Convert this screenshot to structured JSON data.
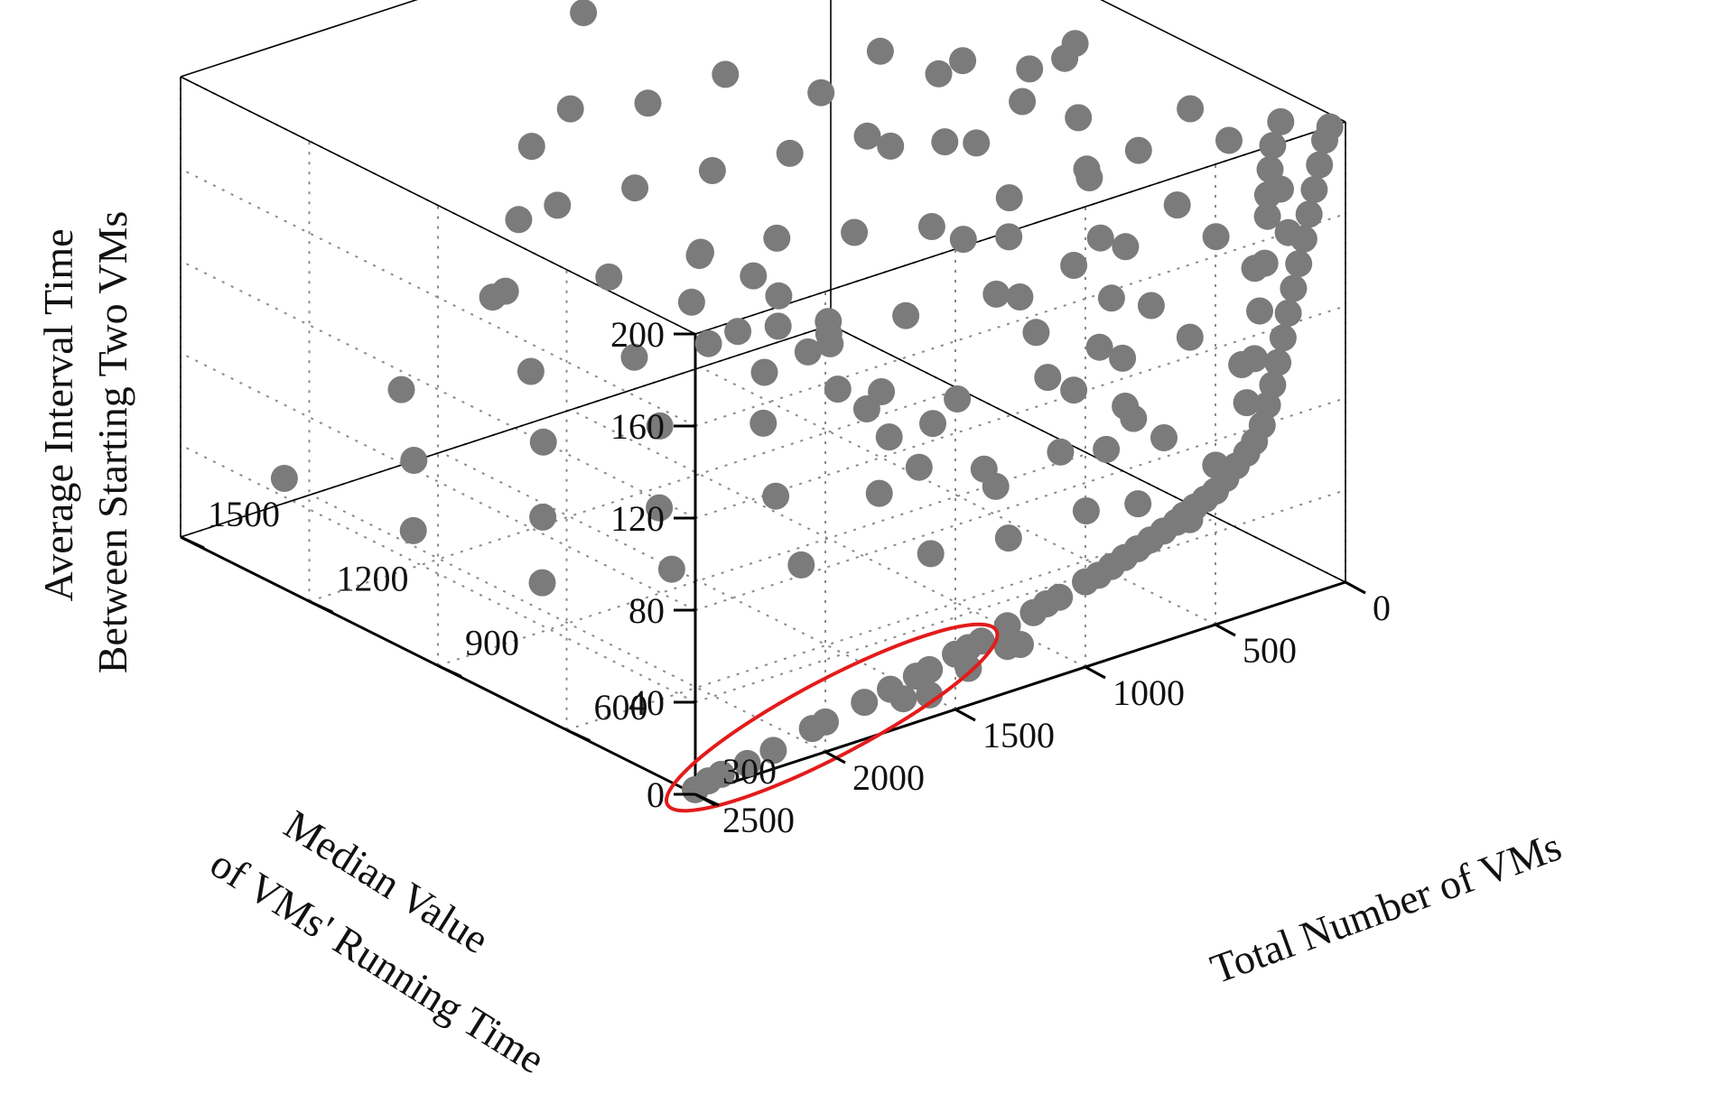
{
  "chart_data": {
    "type": "scatter",
    "title": "",
    "xlabel": "Total Number of VMs",
    "ylabel_lines": [
      "Median Value",
      "of VMs' Running Time"
    ],
    "zlabel_lines": [
      "Average Interval Time",
      "Between Starting Two VMs"
    ],
    "xlim": [
      0,
      2500
    ],
    "ylim": [
      300,
      1500
    ],
    "zlim": [
      0,
      200
    ],
    "x_ticks": [
      "0",
      "500",
      "1000",
      "1500",
      "2000",
      "2500"
    ],
    "y_ticks": [
      "300",
      "600",
      "900",
      "1200",
      "1500"
    ],
    "z_ticks": [
      "0",
      "40",
      "80",
      "120",
      "160",
      "200"
    ],
    "grid": true,
    "marker_color": "#7b7b7b",
    "highlight_color": "#e31b1b",
    "series": [
      {
        "points": [
          [
            2500,
            300,
            2
          ],
          [
            2450,
            300,
            4
          ],
          [
            2400,
            300,
            5
          ],
          [
            2300,
            300,
            6
          ],
          [
            2200,
            300,
            8
          ],
          [
            2050,
            300,
            12
          ],
          [
            2000,
            300,
            13
          ],
          [
            1850,
            300,
            16
          ],
          [
            1750,
            300,
            18
          ],
          [
            1650,
            300,
            20
          ],
          [
            1600,
            300,
            21
          ],
          [
            1500,
            300,
            24
          ],
          [
            1450,
            300,
            25
          ],
          [
            1400,
            300,
            26
          ],
          [
            1300,
            300,
            29
          ],
          [
            1200,
            300,
            31
          ],
          [
            1150,
            300,
            33
          ],
          [
            1100,
            300,
            34
          ],
          [
            1000,
            300,
            37
          ],
          [
            950,
            300,
            38
          ],
          [
            900,
            300,
            40
          ],
          [
            850,
            300,
            42
          ],
          [
            800,
            300,
            44
          ],
          [
            750,
            300,
            46
          ],
          [
            700,
            300,
            48
          ],
          [
            650,
            300,
            50
          ],
          [
            620,
            300,
            52
          ],
          [
            580,
            300,
            54
          ],
          [
            540,
            300,
            56
          ],
          [
            500,
            300,
            58
          ],
          [
            460,
            300,
            62
          ],
          [
            420,
            300,
            66
          ],
          [
            380,
            300,
            70
          ],
          [
            350,
            300,
            74
          ],
          [
            320,
            300,
            80
          ],
          [
            300,
            300,
            88
          ],
          [
            280,
            300,
            96
          ],
          [
            260,
            300,
            105
          ],
          [
            240,
            300,
            115
          ],
          [
            220,
            300,
            125
          ],
          [
            200,
            300,
            135
          ],
          [
            180,
            300,
            145
          ],
          [
            160,
            300,
            155
          ],
          [
            140,
            300,
            165
          ],
          [
            120,
            300,
            175
          ],
          [
            100,
            300,
            185
          ],
          [
            80,
            300,
            195
          ],
          [
            60,
            300,
            200
          ],
          [
            1600,
            300,
            10
          ],
          [
            1450,
            300,
            16
          ],
          [
            1700,
            300,
            12
          ],
          [
            1300,
            300,
            20
          ],
          [
            1250,
            300,
            19
          ],
          [
            380,
            300,
            92
          ],
          [
            350,
            300,
            110
          ],
          [
            330,
            300,
            130
          ],
          [
            310,
            300,
            150
          ],
          [
            300,
            300,
            170
          ],
          [
            290,
            300,
            190
          ],
          [
            280,
            300,
            200
          ],
          [
            250,
            300,
            180
          ],
          [
            220,
            300,
            160
          ],
          [
            500,
            360,
            40
          ],
          [
            400,
            360,
            60
          ],
          [
            300,
            360,
            100
          ],
          [
            250,
            360,
            140
          ],
          [
            200,
            360,
            170
          ],
          [
            150,
            360,
            200
          ],
          [
            600,
            420,
            45
          ],
          [
            500,
            420,
            70
          ],
          [
            400,
            420,
            110
          ],
          [
            300,
            420,
            150
          ],
          [
            250,
            420,
            190
          ],
          [
            700,
            480,
            40
          ],
          [
            550,
            480,
            80
          ],
          [
            450,
            480,
            120
          ],
          [
            350,
            480,
            160
          ],
          [
            300,
            480,
            200
          ],
          [
            900,
            540,
            30
          ],
          [
            700,
            540,
            60
          ],
          [
            550,
            540,
            100
          ],
          [
            450,
            540,
            140
          ],
          [
            400,
            540,
            180
          ],
          [
            1100,
            600,
            25
          ],
          [
            850,
            600,
            45
          ],
          [
            650,
            600,
            85
          ],
          [
            550,
            600,
            130
          ],
          [
            500,
            600,
            170
          ],
          [
            1400,
            720,
            20
          ],
          [
            1100,
            720,
            40
          ],
          [
            800,
            720,
            70
          ],
          [
            650,
            720,
            110
          ],
          [
            600,
            720,
            150
          ],
          [
            550,
            720,
            190
          ],
          [
            1700,
            840,
            18
          ],
          [
            1300,
            840,
            35
          ],
          [
            950,
            840,
            60
          ],
          [
            800,
            840,
            95
          ],
          [
            700,
            840,
            130
          ],
          [
            650,
            840,
            165
          ],
          [
            2000,
            960,
            12
          ],
          [
            1550,
            960,
            28
          ],
          [
            1150,
            960,
            50
          ],
          [
            900,
            960,
            85
          ],
          [
            800,
            960,
            120
          ],
          [
            750,
            960,
            160
          ],
          [
            700,
            960,
            195
          ],
          [
            1800,
            1080,
            22
          ],
          [
            1350,
            1080,
            45
          ],
          [
            1050,
            1080,
            75
          ],
          [
            900,
            1080,
            110
          ],
          [
            850,
            1080,
            145
          ],
          [
            2100,
            1200,
            16
          ],
          [
            1600,
            1200,
            36
          ],
          [
            1250,
            1200,
            60
          ],
          [
            1000,
            1200,
            95
          ],
          [
            950,
            1200,
            130
          ],
          [
            900,
            1200,
            170
          ],
          [
            1900,
            1320,
            28
          ],
          [
            1450,
            1320,
            50
          ],
          [
            1150,
            1320,
            80
          ],
          [
            1050,
            1320,
            115
          ],
          [
            1000,
            1320,
            150
          ],
          [
            2200,
            1440,
            20
          ],
          [
            1750,
            1440,
            42
          ],
          [
            1350,
            1440,
            70
          ],
          [
            1150,
            1440,
            100
          ],
          [
            1100,
            1440,
            140
          ],
          [
            1050,
            1440,
            180
          ],
          [
            1300,
            1500,
            60
          ],
          [
            1200,
            1500,
            90
          ],
          [
            1150,
            1500,
            120
          ],
          [
            300,
            1200,
            10
          ],
          [
            250,
            1350,
            15
          ],
          [
            200,
            1500,
            20
          ],
          [
            350,
            1050,
            12
          ],
          [
            400,
            900,
            8
          ],
          [
            200,
            900,
            60
          ],
          [
            150,
            1100,
            80
          ],
          [
            100,
            1300,
            100
          ],
          [
            120,
            1450,
            110
          ],
          [
            80,
            1200,
            140
          ],
          [
            60,
            1000,
            160
          ],
          [
            450,
            1350,
            30
          ],
          [
            380,
            1450,
            40
          ],
          [
            500,
            1500,
            50
          ],
          [
            420,
            1250,
            35
          ],
          [
            260,
            700,
            30
          ],
          [
            220,
            800,
            45
          ],
          [
            180,
            950,
            70
          ],
          [
            140,
            1000,
            90
          ],
          [
            100,
            1100,
            120
          ],
          [
            70,
            1150,
            150
          ],
          [
            50,
            900,
            180
          ],
          [
            600,
            1000,
            20
          ],
          [
            550,
            1150,
            25
          ],
          [
            500,
            1250,
            30
          ],
          [
            650,
            900,
            18
          ],
          [
            800,
            1300,
            40
          ],
          [
            700,
            1400,
            45
          ],
          [
            750,
            1200,
            35
          ],
          [
            320,
            600,
            55
          ],
          [
            280,
            650,
            75
          ],
          [
            240,
            700,
            95
          ],
          [
            200,
            750,
            115
          ],
          [
            160,
            800,
            135
          ],
          [
            120,
            850,
            155
          ],
          [
            90,
            900,
            175
          ]
        ]
      }
    ]
  }
}
